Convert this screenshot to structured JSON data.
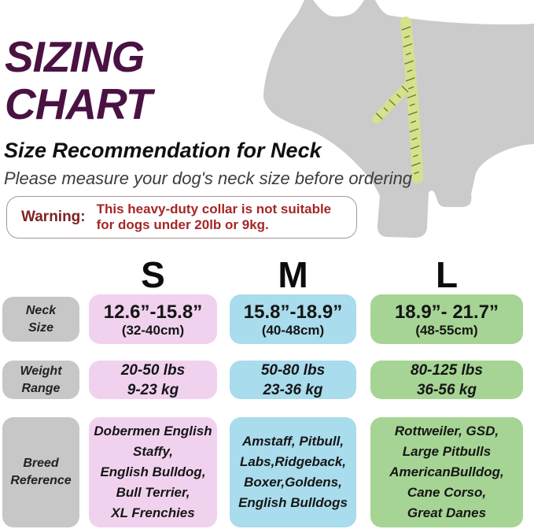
{
  "header": {
    "title_line1": "SIZING",
    "title_line2": "CHART",
    "subtitle": "Size Recommendation for Neck",
    "note": "Please measure your dog's neck size before ordering"
  },
  "warning": {
    "label": "Warning:",
    "message": "This heavy-duty collar is not suitable\nfor dogs under 20lb or 9kg."
  },
  "illustration": {
    "name": "dog-silhouette-with-measuring-tape",
    "body_color": "#cbcbcb",
    "tape_color": "#d6e18c",
    "tick_color": "#6d7230"
  },
  "colors": {
    "title": "#4a1243",
    "warning_label": "#7e2323",
    "warning_message": "#a62626",
    "warning_border": "#a89494",
    "row_label_bg": "#c7c7c7"
  },
  "display": {
    "row_labels": {
      "neck": "Neck\nSize",
      "weight": "Weight\nRange",
      "breed": "Breed\nReference"
    },
    "columns": [
      {
        "letter": "S",
        "color": "#f0d2ee",
        "neck_main": "12.6”-15.8”",
        "neck_sub": "(32-40cm)",
        "weight": "20-50 lbs\n9-23 kg",
        "breeds": "Dobermen English\nStaffy,\nEnglish Bulldog,\nBull Terrier,\nXL Frenchies"
      },
      {
        "letter": "M",
        "color": "#a9dcec",
        "neck_main": "15.8”-18.9”",
        "neck_sub": "(40-48cm)",
        "weight": "50-80 lbs\n23-36 kg",
        "breeds": "Amstaff, Pitbull,\nLabs,Ridgeback,\nBoxer,Goldens,\nEnglish Bulldogs"
      },
      {
        "letter": "L",
        "color": "#a6d494",
        "neck_main": "18.9”- 21.7”",
        "neck_sub": "(48-55cm)",
        "weight": "80-125 lbs\n36-56 kg",
        "breeds": "Rottweiler, GSD,\nLarge Pitbulls\nAmericanBulldog,\nCane Corso,\nGreat Danes"
      }
    ]
  },
  "chart_data": {
    "type": "table",
    "title": "SIZING CHART",
    "subtitle": "Size Recommendation for Neck",
    "columns": [
      "S",
      "M",
      "L"
    ],
    "rows": [
      {
        "label": "Neck Size",
        "values": [
          "12.6”-15.8” (32-40cm)",
          "15.8”-18.9” (40-48cm)",
          "18.9”- 21.7” (48-55cm)"
        ]
      },
      {
        "label": "Weight Range",
        "values": [
          "20-50 lbs / 9-23 kg",
          "50-80 lbs / 23-36 kg",
          "80-125 lbs / 36-56 kg"
        ]
      },
      {
        "label": "Breed Reference",
        "values": [
          "Dobermen English Staffy, English Bulldog, Bull Terrier, XL Frenchies",
          "Amstaff, Pitbull, Labs,Ridgeback, Boxer,Goldens, English Bulldogs",
          "Rottweiler, GSD, Large Pitbulls AmericanBulldog, Cane Corso, Great Danes"
        ]
      }
    ]
  }
}
